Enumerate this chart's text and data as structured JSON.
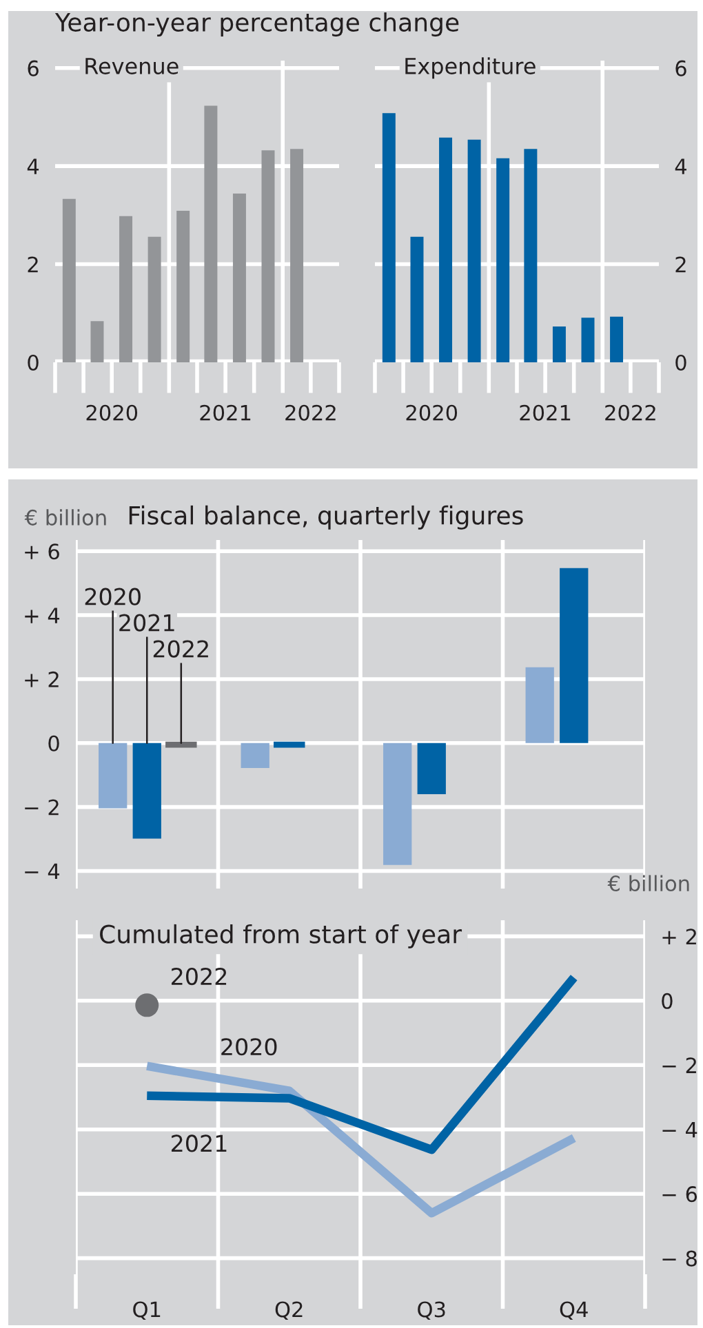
{
  "chart_data": [
    {
      "type": "bar",
      "title": "Year-on-year percentage change",
      "subtitle": "Revenue",
      "x": [
        "2020-02-15",
        "2020-05-15",
        "2020-08-15",
        "2020-11-15",
        "2021-02-15",
        "2021-05-15",
        "2021-08-15",
        "2021-11-15",
        "2022-02-15"
      ],
      "values": [
        3.33,
        0.84,
        2.98,
        2.56,
        3.09,
        5.23,
        3.44,
        4.32,
        4.35
      ],
      "color": "#939598",
      "xlim": [
        "2020-01-01",
        "2022-07-01"
      ],
      "xticks": [
        {
          "value": "2020-07-01",
          "label": "2020"
        },
        {
          "value": "2021-07-01",
          "label": "2021"
        },
        {
          "value": "2022-04-01",
          "label": "2022"
        }
      ],
      "ylim": [
        0,
        6.15
      ],
      "yticks": [
        0,
        2,
        4,
        6
      ],
      "grid": "y",
      "ref_lines": [
        {
          "axis": "x",
          "value": "2021-01-01",
          "color": "#ffffff"
        },
        {
          "axis": "x",
          "value": "2022-01-01",
          "color": "#ffffff"
        }
      ]
    },
    {
      "type": "bar",
      "subtitle": "Expenditure",
      "x": [
        "2020-02-15",
        "2020-05-15",
        "2020-08-15",
        "2020-11-15",
        "2021-02-15",
        "2021-05-15",
        "2021-08-15",
        "2021-11-15",
        "2022-02-15"
      ],
      "series": [
        {
          "color": "#0063a5",
          "axis": "y2",
          "values": [
            5.08,
            2.56,
            4.58,
            4.54,
            4.16,
            4.35,
            0.73,
            0.91,
            0.93
          ]
        }
      ],
      "xlim": [
        "2020-01-01",
        "2022-07-01"
      ],
      "xticks": [
        {
          "value": "2020-07-01",
          "label": "2020"
        },
        {
          "value": "2021-07-01",
          "label": "2021"
        },
        {
          "value": "2022-04-01",
          "label": "2022"
        }
      ],
      "y2lim": [
        0,
        6.15
      ],
      "y2ticks": [
        0,
        2,
        4,
        6
      ],
      "grid": "y",
      "ref_lines": [
        {
          "axis": "x",
          "value": "2021-01-01",
          "color": "#ffffff"
        },
        {
          "axis": "x",
          "value": "2022-01-01",
          "color": "#ffffff"
        }
      ]
    },
    {
      "type": "bar",
      "title": "Fiscal balance, quarterly figures",
      "ylabel": "€ billion",
      "categories": [
        null,
        null,
        null,
        null
      ],
      "series": [
        {
          "name": "2020",
          "color": "#8aabd3",
          "values": [
            -2.04,
            -0.78,
            -3.81,
            2.37
          ]
        },
        {
          "name": "2021",
          "color": "#0063a5",
          "values": [
            -2.99,
            -0.1,
            -1.6,
            5.47
          ]
        },
        {
          "name": "2022",
          "color": "#6d6e71",
          "values": [
            -0.1,
            null,
            null,
            null
          ]
        }
      ],
      "ylim": [
        -4.55,
        6.35
      ],
      "yticks": [
        {
          "value": 6,
          "label": "+ 6"
        },
        {
          "value": 4,
          "label": "+ 4"
        },
        {
          "value": 2,
          "label": "+ 2"
        },
        0,
        {
          "value": -2,
          "label": "− 2"
        },
        {
          "value": -4,
          "label": "− 4"
        }
      ],
      "grid": "y",
      "tick_labels": "y"
    },
    {
      "type": "line",
      "title": "Cumulated from start of year",
      "y2label": "€ billion",
      "categories": [
        "Q1",
        "Q2",
        "Q3",
        "Q4"
      ],
      "series": [
        {
          "name": "2020",
          "color": "#8aabd3",
          "axis": "y2",
          "values": [
            -2.03,
            -2.8,
            -6.6,
            -4.27
          ]
        },
        {
          "name": "2021",
          "color": "#0063a5",
          "axis": "y2",
          "values": [
            -2.95,
            -3.03,
            -4.63,
            0.72
          ]
        },
        {
          "name": "2022",
          "type": "scatter",
          "color": "#6d6e71",
          "axis": "y2",
          "values": [
            -0.14,
            null,
            null,
            null
          ]
        }
      ],
      "y2lim": [
        -8.5,
        2.5
      ],
      "y2ticks": [
        {
          "value": 2,
          "label": "+ 2"
        },
        0,
        {
          "value": -2,
          "label": "− 2"
        },
        {
          "value": -4,
          "label": "− 4"
        },
        {
          "value": -6,
          "label": "− 6"
        },
        {
          "value": -8,
          "label": "− 8"
        }
      ],
      "grid": "y"
    }
  ]
}
